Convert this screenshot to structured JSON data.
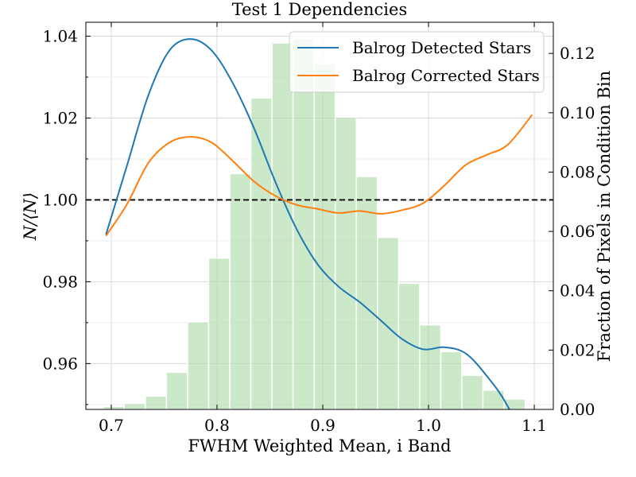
{
  "chart_data": {
    "type": "line",
    "title": "Test 1 Dependencies",
    "xlabel": "FWHM Weighted Mean, i Band",
    "ylabel": "N/⟨N⟩",
    "ylabel_right": "Fraction of Pixels in Condition Bin",
    "xlim": [
      0.676,
      1.118
    ],
    "ylim": [
      0.9488,
      1.0434
    ],
    "ylim_right": [
      0.0,
      0.1305
    ],
    "x_ticks": [
      0.7,
      0.8,
      0.9,
      1.0,
      1.1
    ],
    "x_tick_labels": [
      "0.7",
      "0.8",
      "0.9",
      "1.0",
      "1.1"
    ],
    "y_ticks": [
      0.96,
      0.98,
      1.0,
      1.02,
      1.04
    ],
    "y_tick_labels": [
      "0.96",
      "0.98",
      "1.00",
      "1.02",
      "1.04"
    ],
    "y_minor_ticks": [
      0.95,
      0.97,
      0.99,
      1.01,
      1.03
    ],
    "y_right_ticks": [
      0.0,
      0.02,
      0.04,
      0.06,
      0.08,
      0.1,
      0.12
    ],
    "y_right_tick_labels": [
      "0.00",
      "0.02",
      "0.04",
      "0.06",
      "0.08",
      "0.10",
      "0.12"
    ],
    "grid": true,
    "legend_position": "top-right",
    "reference_line": {
      "y": 1.0,
      "style": "dashed",
      "color": "#000000"
    },
    "histogram": {
      "color": "#a9d8a4",
      "edges": [
        0.6924,
        0.7123,
        0.7323,
        0.7522,
        0.7722,
        0.7921,
        0.8121,
        0.832,
        0.852,
        0.8719,
        0.8919,
        0.9118,
        0.9318,
        0.9517,
        0.9717,
        0.9916,
        1.0116,
        1.0315,
        1.0515,
        1.0714,
        1.0914
      ],
      "fractions": [
        0.001,
        0.002,
        0.0045,
        0.0125,
        0.0295,
        0.051,
        0.0795,
        0.105,
        0.1235,
        0.125,
        0.1165,
        0.0985,
        0.0785,
        0.058,
        0.0425,
        0.0285,
        0.0195,
        0.0115,
        0.0065,
        0.0035
      ]
    },
    "series": [
      {
        "name": "Balrog Detected Stars",
        "color": "#1f77b4",
        "x": [
          0.695,
          0.715,
          0.735,
          0.755,
          0.775,
          0.795,
          0.815,
          0.835,
          0.855,
          0.875,
          0.895,
          0.915,
          0.935,
          0.955,
          0.975,
          0.995,
          1.015,
          1.035,
          1.055,
          1.075,
          1.098
        ],
        "y": [
          0.9915,
          1.0085,
          1.0255,
          1.0365,
          1.0393,
          1.0365,
          1.0285,
          1.0175,
          1.0045,
          0.993,
          0.9843,
          0.9788,
          0.975,
          0.9705,
          0.966,
          0.9635,
          0.964,
          0.9625,
          0.957,
          0.9495,
          0.9362
        ]
      },
      {
        "name": "Balrog Corrected Stars",
        "color": "#ff7f0e",
        "x": [
          0.695,
          0.715,
          0.735,
          0.755,
          0.775,
          0.795,
          0.815,
          0.835,
          0.855,
          0.875,
          0.895,
          0.915,
          0.935,
          0.955,
          0.975,
          0.995,
          1.015,
          1.035,
          1.055,
          1.075,
          1.098
        ],
        "y": [
          0.9912,
          0.999,
          1.009,
          1.014,
          1.0154,
          1.014,
          1.0095,
          1.0045,
          1.001,
          0.9988,
          0.9978,
          0.9968,
          0.9973,
          0.9966,
          0.9975,
          0.9992,
          1.0035,
          1.0085,
          1.011,
          1.0135,
          1.0208
        ]
      }
    ]
  }
}
